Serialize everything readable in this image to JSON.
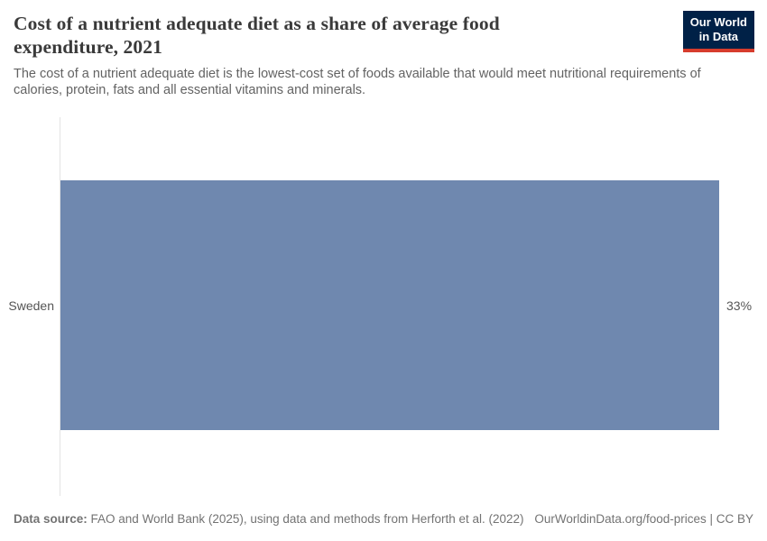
{
  "header": {
    "title": "Cost of a nutrient adequate diet as a share of average food expenditure, 2021",
    "subtitle": "The cost of a nutrient adequate diet is the lowest-cost set of foods available that would meet nutritional requirements of calories, protein, fats and all essential vitamins and minerals.",
    "logo": {
      "line1": "Our World",
      "line2": "in Data"
    }
  },
  "chart_data": {
    "type": "bar",
    "orientation": "horizontal",
    "title": "Cost of a nutrient adequate diet as a share of average food expenditure, 2021",
    "categories": [
      "Sweden"
    ],
    "values": [
      33
    ],
    "value_labels": [
      "33%"
    ],
    "xlabel": "",
    "ylabel": "",
    "xlim": [
      0,
      33
    ],
    "grid": false,
    "legend": false,
    "bar_color": "#6f88af"
  },
  "footer": {
    "datasource_label": "Data source:",
    "datasource_text": " FAO and World Bank (2025), using data and methods from Herforth et al. (2022)",
    "link_text": "OurWorldinData.org/food-prices | CC BY"
  },
  "colors": {
    "bar": "#6f88af",
    "logo_background": "#002147",
    "logo_stripe": "#d73c2d",
    "axis_line": "#e3e3e3",
    "title_text": "#3a3a3a",
    "subtitle_text": "#636363",
    "footer_text": "#737373"
  }
}
